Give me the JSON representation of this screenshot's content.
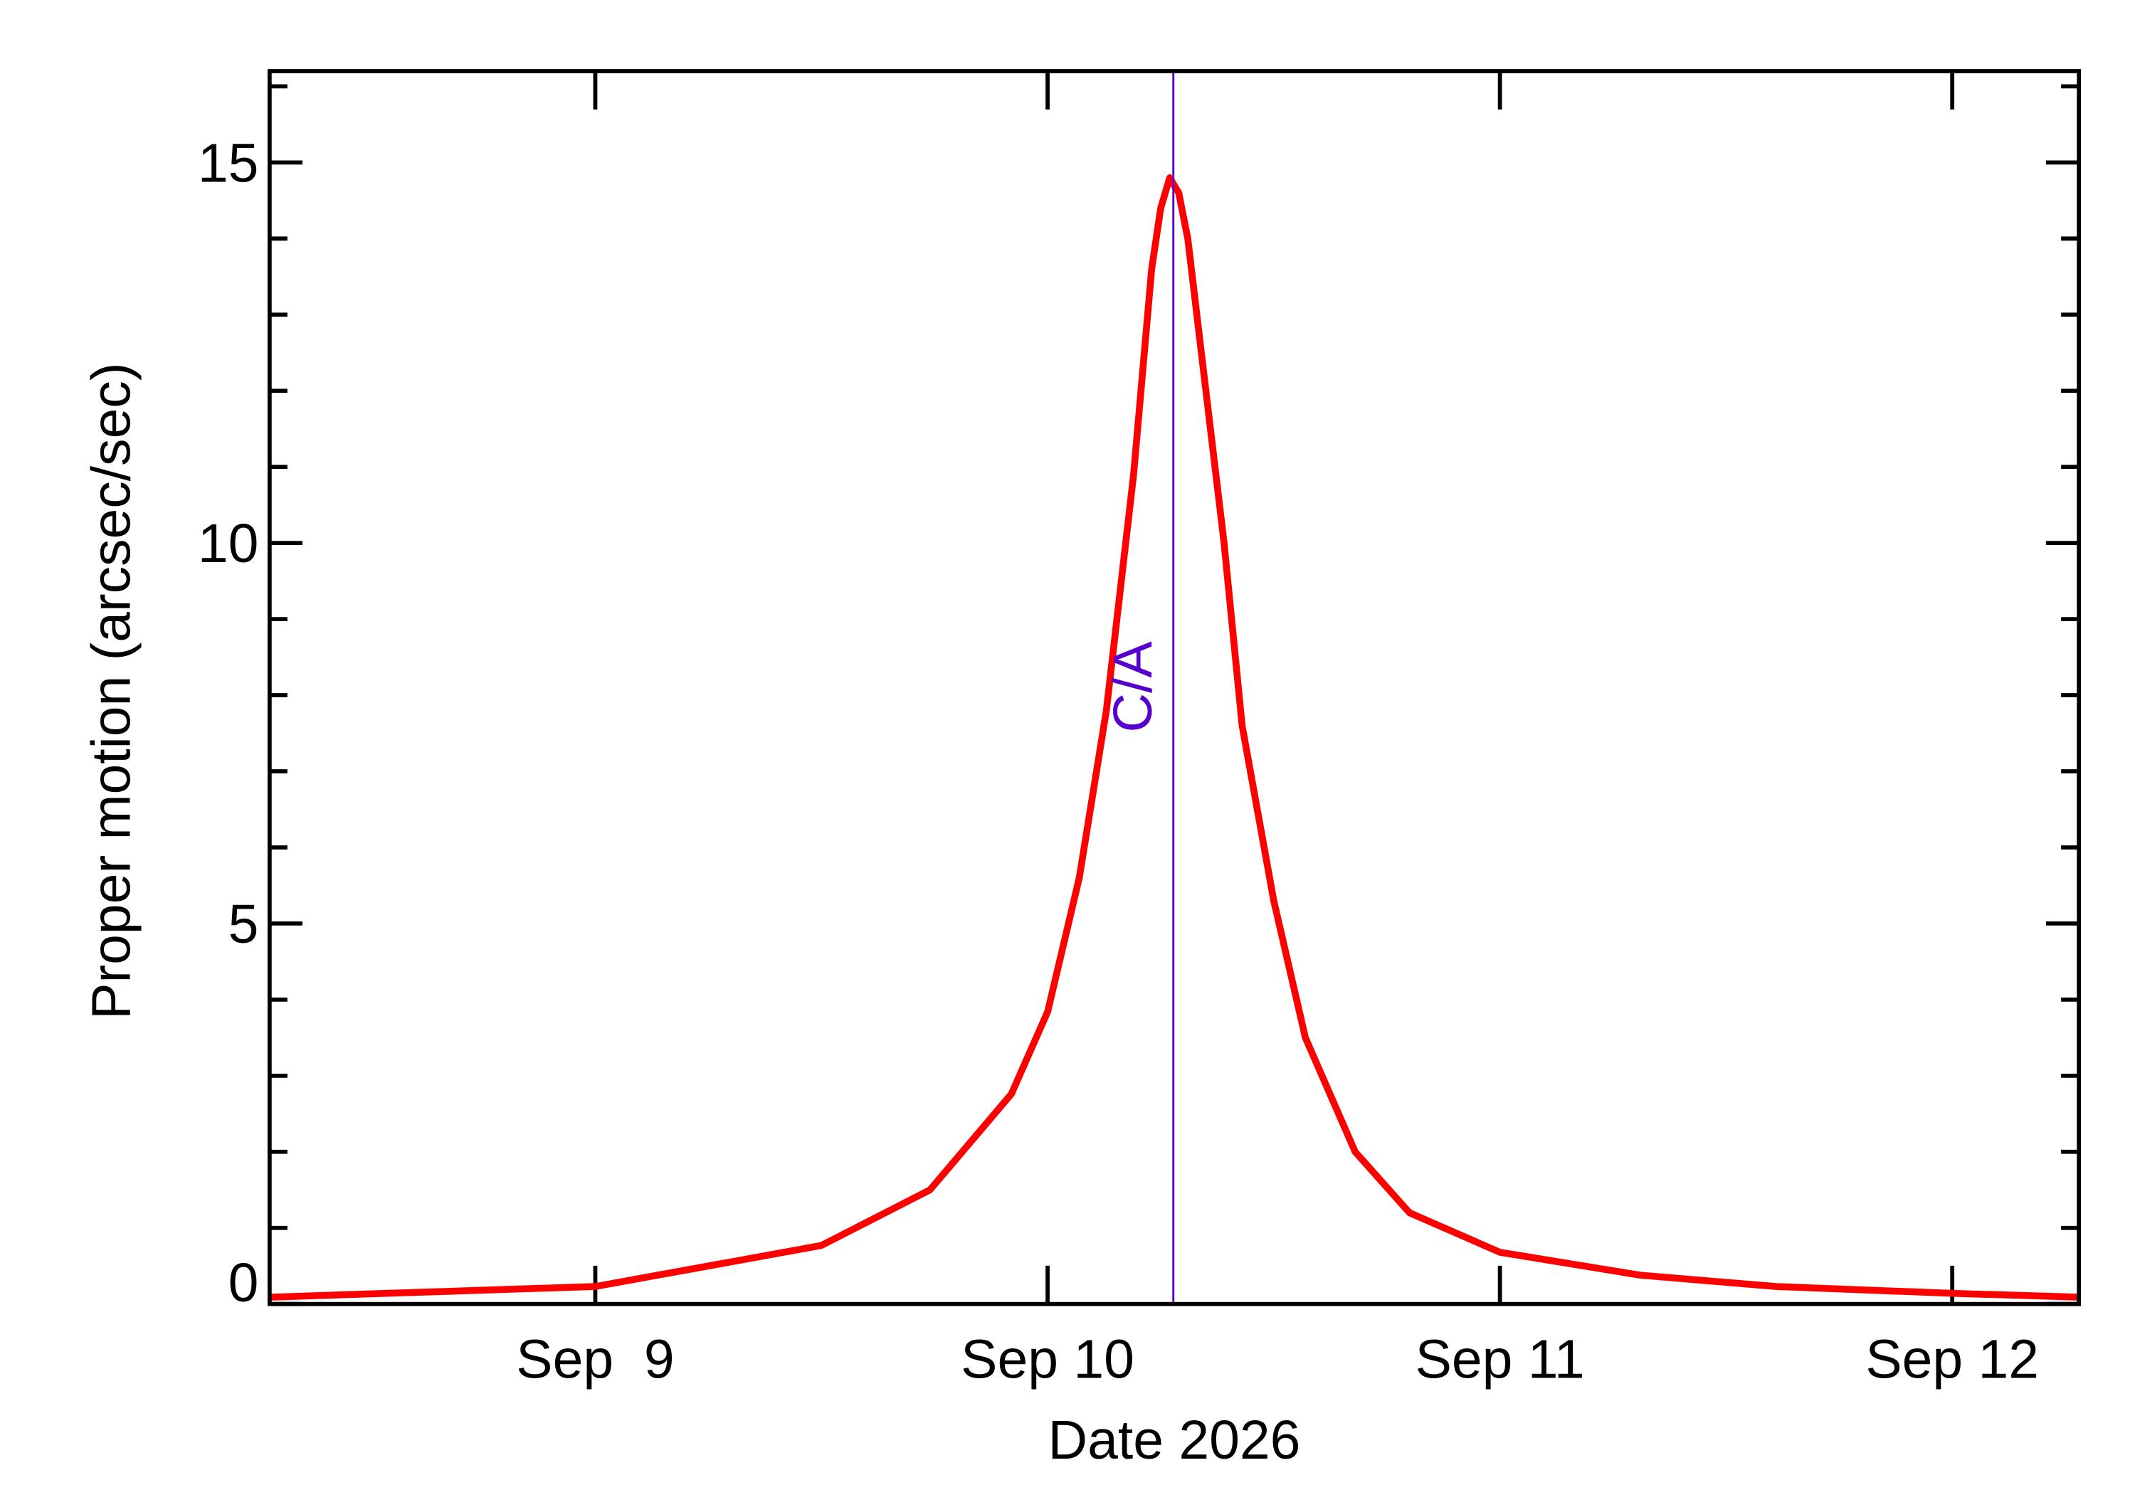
{
  "chart_data": {
    "type": "line",
    "x_label": "Date 2026",
    "y_label": "Proper motion (arcsec/sec)",
    "x": [
      8.28,
      9.0,
      9.5,
      9.74,
      9.92,
      10.0,
      10.07,
      10.13,
      10.19,
      10.23,
      10.25,
      10.27,
      10.29,
      10.31,
      10.34,
      10.39,
      10.43,
      10.5,
      10.57,
      10.68,
      10.8,
      11.0,
      11.31,
      11.61,
      12.0,
      12.28
    ],
    "series": [
      {
        "color": "#ff0000",
        "values": [
          0.09,
          0.23,
          0.77,
          1.5,
          2.76,
          3.84,
          5.6,
          7.8,
          10.9,
          13.6,
          14.4,
          14.8,
          14.6,
          14.0,
          12.5,
          10.0,
          7.6,
          5.3,
          3.5,
          2.0,
          1.2,
          0.68,
          0.38,
          0.23,
          0.14,
          0.09
        ]
      }
    ],
    "xlim": [
      8.28,
      12.28
    ],
    "xticks": [
      {
        "value": 9,
        "label": "Sep  9"
      },
      {
        "value": 10,
        "label": "Sep 10"
      },
      {
        "value": 11,
        "label": "Sep 11"
      },
      {
        "value": 12,
        "label": "Sep 12"
      }
    ],
    "ylim": [
      0,
      16.2
    ],
    "yticks": [
      0,
      5,
      10,
      15
    ],
    "yminorticks": [
      1,
      2,
      3,
      4,
      6,
      7,
      8,
      9,
      11,
      12,
      13,
      14,
      16
    ],
    "annotation": {
      "text": "C/A",
      "x": 10.278,
      "color": "#5500cc"
    }
  }
}
